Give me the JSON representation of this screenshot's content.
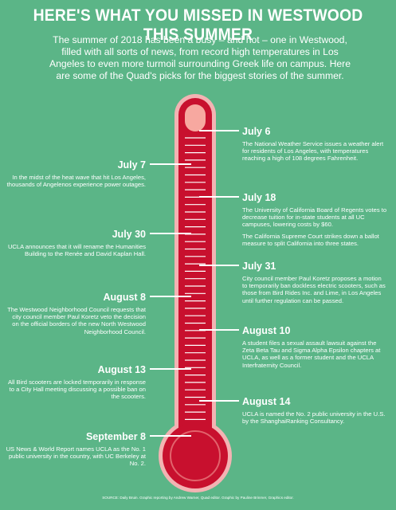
{
  "header": {
    "title": "HERE'S WHAT YOU MISSED IN WESTWOOD THIS SUMMER",
    "intro": "The summer of 2018 has been a busy – and hot – one in Westwood, filled with all sorts of news, from record high temperatures in Los Angeles to even more turmoil surrounding Greek life on campus. Here are some of the Quad's picks for the biggest stories of the summer."
  },
  "colors": {
    "background": "#5bb587",
    "thermometer_red": "#c8102e",
    "thermometer_rim": "#f3b3b3",
    "thermometer_tube": "#f7a8a0"
  },
  "events": [
    {
      "date": "July 6",
      "text": "The National Weather Service issues a weather alert for residents of Los Angeles, with temperatures reaching a high of 108 degrees Fahrenheit."
    },
    {
      "date": "July 7",
      "text": "In the midst of the heat wave that hit Los Angeles, thousands of Angelenos experience power outages."
    },
    {
      "date": "July 18",
      "text": "The University of California Board of Regents votes to decrease tuition for in-state students at all UC campuses, lowering costs by $60.",
      "text2": "The California Supreme Court strikes down a ballot measure to split California into three states."
    },
    {
      "date": "July 30",
      "text": "UCLA announces that it will rename the Humanities Building to the Renée and David Kaplan Hall."
    },
    {
      "date": "July 31",
      "text": "City council member Paul Koretz proposes a motion to temporarily ban dockless electric scooters, such as those from Bird Rides Inc. and Lime, in Los Angeles until further regulation can be passed."
    },
    {
      "date": "August 8",
      "text": "The Westwood Neighborhood Council requests that city council member Paul Koretz veto the decision on the official borders of the new North Westwood Neighborhood Council."
    },
    {
      "date": "August 10",
      "text": "A student files a sexual assault lawsuit against the Zeta Beta Tau and Sigma Alpha Epsilon chapters at UCLA, as well as a former student and the UCLA Interfraternity Council."
    },
    {
      "date": "August 13",
      "text": "All Bird scooters are locked temporarily in response to a City Hall meeting discussing a possible ban on the scooters."
    },
    {
      "date": "August 14",
      "text": "UCLA is named the No. 2 public university in the U.S. by the ShanghaiRanking Consultancy."
    },
    {
      "date": "September 8",
      "text": "US News & World Report names UCLA as the No. 1 public university in the country, with UC Berkeley at No. 2."
    }
  ],
  "footer": {
    "source": "SOURCE: Daily Bruin. Graphic reporting by Andrew Warner, Quad editor. Graphic by Pauline Brinmer, Graphics editor."
  }
}
